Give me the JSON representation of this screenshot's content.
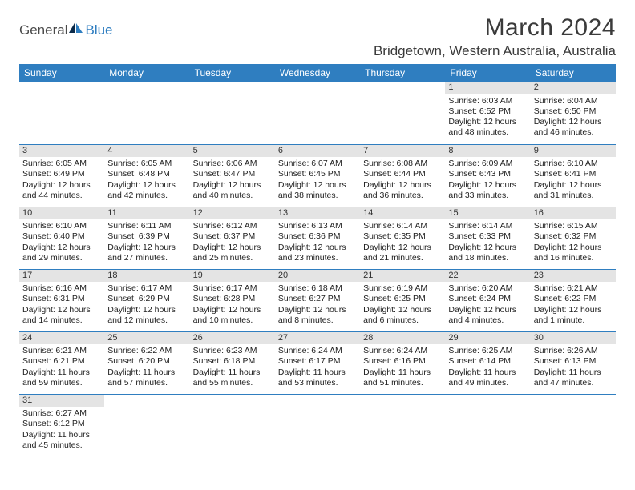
{
  "logo": {
    "text1": "General",
    "text2": "Blue"
  },
  "title": {
    "month": "March 2024",
    "location": "Bridgetown, Western Australia, Australia"
  },
  "colors": {
    "header_bg": "#2f7ec0",
    "header_fg": "#ffffff",
    "daynum_bg": "#e4e4e4",
    "rule": "#2f7ec0"
  },
  "weekdays": [
    "Sunday",
    "Monday",
    "Tuesday",
    "Wednesday",
    "Thursday",
    "Friday",
    "Saturday"
  ],
  "first_weekday_index": 5,
  "days": [
    {
      "n": "1",
      "sunrise": "Sunrise: 6:03 AM",
      "sunset": "Sunset: 6:52 PM",
      "daylight": "Daylight: 12 hours and 48 minutes."
    },
    {
      "n": "2",
      "sunrise": "Sunrise: 6:04 AM",
      "sunset": "Sunset: 6:50 PM",
      "daylight": "Daylight: 12 hours and 46 minutes."
    },
    {
      "n": "3",
      "sunrise": "Sunrise: 6:05 AM",
      "sunset": "Sunset: 6:49 PM",
      "daylight": "Daylight: 12 hours and 44 minutes."
    },
    {
      "n": "4",
      "sunrise": "Sunrise: 6:05 AM",
      "sunset": "Sunset: 6:48 PM",
      "daylight": "Daylight: 12 hours and 42 minutes."
    },
    {
      "n": "5",
      "sunrise": "Sunrise: 6:06 AM",
      "sunset": "Sunset: 6:47 PM",
      "daylight": "Daylight: 12 hours and 40 minutes."
    },
    {
      "n": "6",
      "sunrise": "Sunrise: 6:07 AM",
      "sunset": "Sunset: 6:45 PM",
      "daylight": "Daylight: 12 hours and 38 minutes."
    },
    {
      "n": "7",
      "sunrise": "Sunrise: 6:08 AM",
      "sunset": "Sunset: 6:44 PM",
      "daylight": "Daylight: 12 hours and 36 minutes."
    },
    {
      "n": "8",
      "sunrise": "Sunrise: 6:09 AM",
      "sunset": "Sunset: 6:43 PM",
      "daylight": "Daylight: 12 hours and 33 minutes."
    },
    {
      "n": "9",
      "sunrise": "Sunrise: 6:10 AM",
      "sunset": "Sunset: 6:41 PM",
      "daylight": "Daylight: 12 hours and 31 minutes."
    },
    {
      "n": "10",
      "sunrise": "Sunrise: 6:10 AM",
      "sunset": "Sunset: 6:40 PM",
      "daylight": "Daylight: 12 hours and 29 minutes."
    },
    {
      "n": "11",
      "sunrise": "Sunrise: 6:11 AM",
      "sunset": "Sunset: 6:39 PM",
      "daylight": "Daylight: 12 hours and 27 minutes."
    },
    {
      "n": "12",
      "sunrise": "Sunrise: 6:12 AM",
      "sunset": "Sunset: 6:37 PM",
      "daylight": "Daylight: 12 hours and 25 minutes."
    },
    {
      "n": "13",
      "sunrise": "Sunrise: 6:13 AM",
      "sunset": "Sunset: 6:36 PM",
      "daylight": "Daylight: 12 hours and 23 minutes."
    },
    {
      "n": "14",
      "sunrise": "Sunrise: 6:14 AM",
      "sunset": "Sunset: 6:35 PM",
      "daylight": "Daylight: 12 hours and 21 minutes."
    },
    {
      "n": "15",
      "sunrise": "Sunrise: 6:14 AM",
      "sunset": "Sunset: 6:33 PM",
      "daylight": "Daylight: 12 hours and 18 minutes."
    },
    {
      "n": "16",
      "sunrise": "Sunrise: 6:15 AM",
      "sunset": "Sunset: 6:32 PM",
      "daylight": "Daylight: 12 hours and 16 minutes."
    },
    {
      "n": "17",
      "sunrise": "Sunrise: 6:16 AM",
      "sunset": "Sunset: 6:31 PM",
      "daylight": "Daylight: 12 hours and 14 minutes."
    },
    {
      "n": "18",
      "sunrise": "Sunrise: 6:17 AM",
      "sunset": "Sunset: 6:29 PM",
      "daylight": "Daylight: 12 hours and 12 minutes."
    },
    {
      "n": "19",
      "sunrise": "Sunrise: 6:17 AM",
      "sunset": "Sunset: 6:28 PM",
      "daylight": "Daylight: 12 hours and 10 minutes."
    },
    {
      "n": "20",
      "sunrise": "Sunrise: 6:18 AM",
      "sunset": "Sunset: 6:27 PM",
      "daylight": "Daylight: 12 hours and 8 minutes."
    },
    {
      "n": "21",
      "sunrise": "Sunrise: 6:19 AM",
      "sunset": "Sunset: 6:25 PM",
      "daylight": "Daylight: 12 hours and 6 minutes."
    },
    {
      "n": "22",
      "sunrise": "Sunrise: 6:20 AM",
      "sunset": "Sunset: 6:24 PM",
      "daylight": "Daylight: 12 hours and 4 minutes."
    },
    {
      "n": "23",
      "sunrise": "Sunrise: 6:21 AM",
      "sunset": "Sunset: 6:22 PM",
      "daylight": "Daylight: 12 hours and 1 minute."
    },
    {
      "n": "24",
      "sunrise": "Sunrise: 6:21 AM",
      "sunset": "Sunset: 6:21 PM",
      "daylight": "Daylight: 11 hours and 59 minutes."
    },
    {
      "n": "25",
      "sunrise": "Sunrise: 6:22 AM",
      "sunset": "Sunset: 6:20 PM",
      "daylight": "Daylight: 11 hours and 57 minutes."
    },
    {
      "n": "26",
      "sunrise": "Sunrise: 6:23 AM",
      "sunset": "Sunset: 6:18 PM",
      "daylight": "Daylight: 11 hours and 55 minutes."
    },
    {
      "n": "27",
      "sunrise": "Sunrise: 6:24 AM",
      "sunset": "Sunset: 6:17 PM",
      "daylight": "Daylight: 11 hours and 53 minutes."
    },
    {
      "n": "28",
      "sunrise": "Sunrise: 6:24 AM",
      "sunset": "Sunset: 6:16 PM",
      "daylight": "Daylight: 11 hours and 51 minutes."
    },
    {
      "n": "29",
      "sunrise": "Sunrise: 6:25 AM",
      "sunset": "Sunset: 6:14 PM",
      "daylight": "Daylight: 11 hours and 49 minutes."
    },
    {
      "n": "30",
      "sunrise": "Sunrise: 6:26 AM",
      "sunset": "Sunset: 6:13 PM",
      "daylight": "Daylight: 11 hours and 47 minutes."
    },
    {
      "n": "31",
      "sunrise": "Sunrise: 6:27 AM",
      "sunset": "Sunset: 6:12 PM",
      "daylight": "Daylight: 11 hours and 45 minutes."
    }
  ]
}
